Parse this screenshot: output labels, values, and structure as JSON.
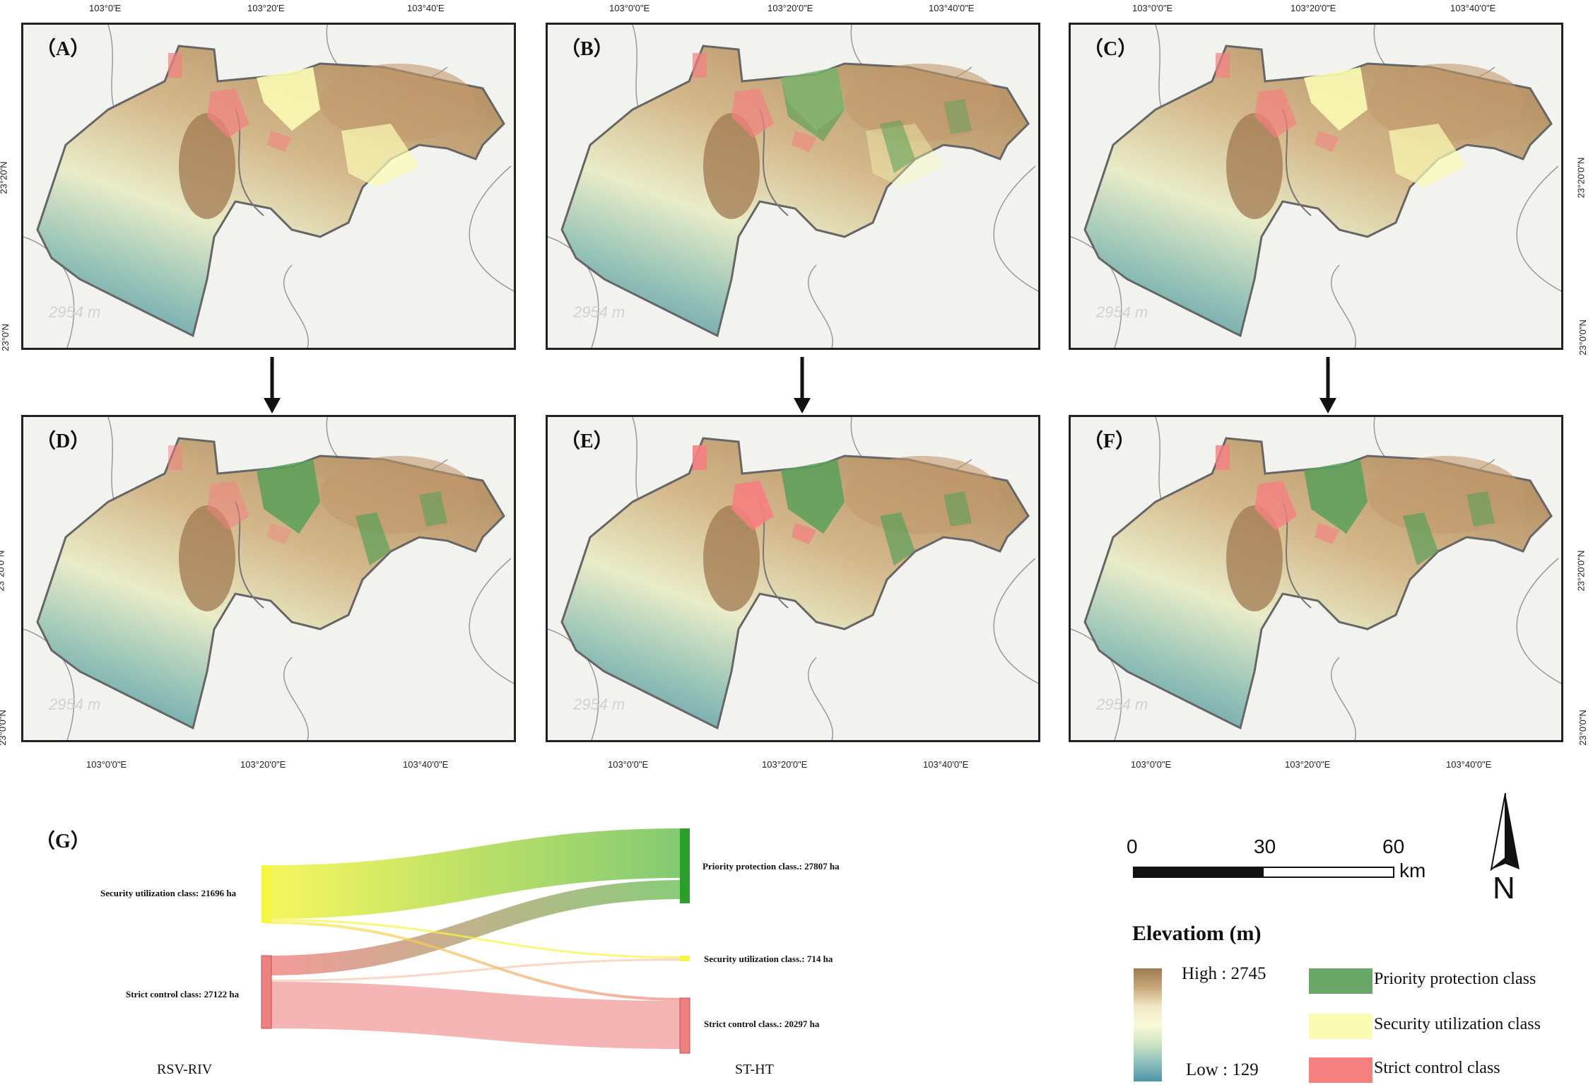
{
  "panels": [
    {
      "label": "（A）",
      "watermark": "2954 m",
      "mix": {
        "green": 0.0,
        "yellow": 0.9,
        "red": 0.7
      }
    },
    {
      "label": "（B）",
      "watermark": "2954 m",
      "mix": {
        "green": 0.8,
        "yellow": 0.5,
        "red": 0.7
      }
    },
    {
      "label": "（C）",
      "watermark": "2954 m",
      "mix": {
        "green": 0.0,
        "yellow": 0.9,
        "red": 0.7
      }
    },
    {
      "label": "（D）",
      "watermark": "2954 m",
      "mix": {
        "green": 1.0,
        "yellow": 0.0,
        "red": 0.5
      }
    },
    {
      "label": "（E）",
      "watermark": "2954 m",
      "mix": {
        "green": 1.0,
        "yellow": 0.0,
        "red": 0.9
      }
    },
    {
      "label": "（F）",
      "watermark": "2954 m",
      "mix": {
        "green": 1.0,
        "yellow": 0.0,
        "red": 0.8
      }
    }
  ],
  "axes": {
    "top_ticks_a": [
      "103°0'E",
      "103°20'E",
      "103°40'E"
    ],
    "top_ticks_bc": [
      "103°0'0\"E",
      "103°20'0\"E",
      "103°40'0\"E"
    ],
    "bottom_ticks": [
      "103°0'0\"E",
      "103°20'0\"E",
      "103°40'0\"E"
    ],
    "left_ticks_top": [
      "23°20'N",
      "23°0'N"
    ],
    "left_ticks_bottom": [
      "23°20'0\"N",
      "23°0'0\"N"
    ],
    "right_ticks": [
      "23°20'0\"N",
      "23°0'0\"N"
    ]
  },
  "sankey": {
    "panel_label": "（G）",
    "left_axis_label": "RSV-RIV",
    "right_axis_label": "ST-HT",
    "left_nodes": [
      {
        "label": "Security utilization class: 21696 ha",
        "value": 21696,
        "color": "#f5f542"
      },
      {
        "label": "Strict control class: 27122 ha",
        "value": 27122,
        "color": "#f08080"
      }
    ],
    "right_nodes": [
      {
        "label": "Priority protection class.: 27807 ha",
        "value": 27807,
        "color": "#2aa02a"
      },
      {
        "label": "Security utilization class.: 714 ha",
        "value": 714,
        "color": "#f5f542"
      },
      {
        "label": "Strict control class.: 20297 ha",
        "value": 20297,
        "color": "#f08080"
      }
    ]
  },
  "scale_bar": {
    "labels": [
      "0",
      "30",
      "60"
    ],
    "unit": "km"
  },
  "north_arrow": {
    "letter": "N"
  },
  "legend": {
    "title": "Elevatiom (m)",
    "high": "High : 2745",
    "low": "Low : 129",
    "items": [
      {
        "label": "Priority protection class",
        "color": "#6aa86a"
      },
      {
        "label": "Security utilization class",
        "color": "#fbfbb4"
      },
      {
        "label": "Strict control class",
        "color": "#f58080"
      }
    ]
  }
}
